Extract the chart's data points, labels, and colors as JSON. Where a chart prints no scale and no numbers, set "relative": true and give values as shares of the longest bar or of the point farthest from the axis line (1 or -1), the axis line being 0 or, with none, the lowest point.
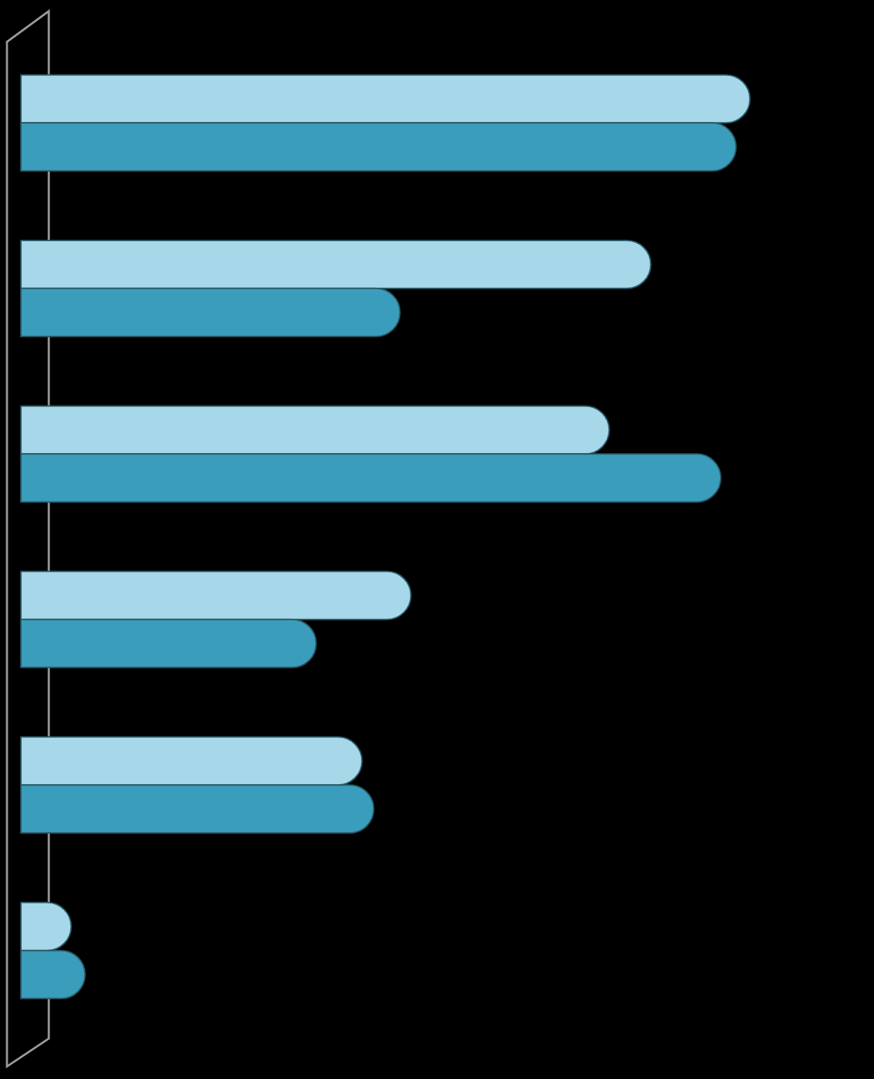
{
  "chart_data": {
    "type": "bar",
    "orientation": "horizontal",
    "relative": true,
    "categories": [
      null,
      null,
      null,
      null,
      null,
      null
    ],
    "series": [
      {
        "color": "#a6d8ea",
        "values": [
          1,
          0.864,
          0.807,
          0.535,
          0.468,
          0.069
        ]
      },
      {
        "color": "#3a9dbb",
        "values": [
          0.981,
          0.52,
          0.96,
          0.405,
          0.484,
          0.088
        ]
      }
    ]
  }
}
